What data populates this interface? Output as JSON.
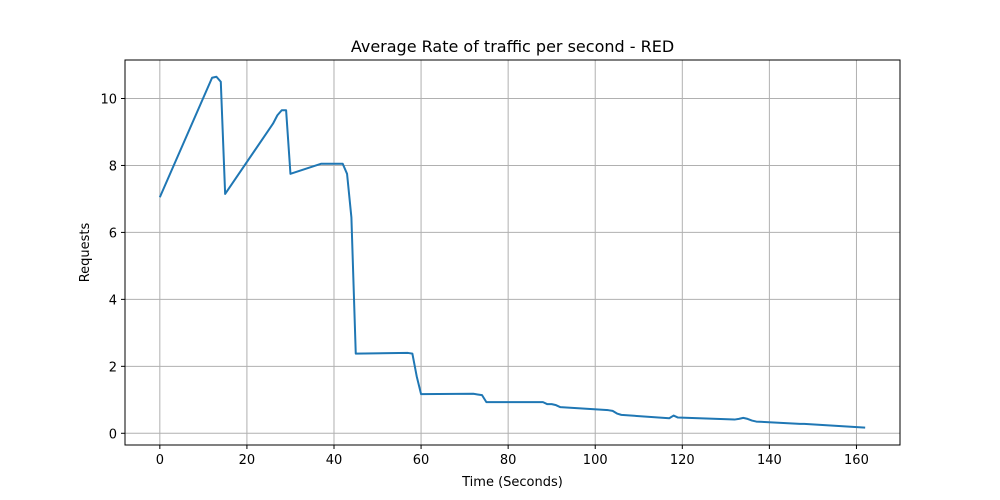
{
  "chart_data": {
    "type": "line",
    "title": "Average Rate of traffic per second - RED",
    "xlabel": "Time (Seconds)",
    "ylabel": "Requests",
    "xlim": [
      -8,
      170
    ],
    "ylim": [
      -0.35,
      11.15
    ],
    "xticks": [
      0,
      20,
      40,
      60,
      80,
      100,
      120,
      140,
      160
    ],
    "yticks": [
      0,
      2,
      4,
      6,
      8,
      10
    ],
    "grid": true,
    "legend": "none",
    "colors": {
      "line": "#1f77b4",
      "grid": "#b0b0b0"
    },
    "series": [
      {
        "x": [
          0,
          12,
          13,
          14,
          15,
          26,
          27,
          28,
          29,
          30,
          37,
          42,
          43,
          44,
          45,
          57,
          58,
          59,
          60,
          72,
          73,
          74,
          75,
          88,
          89,
          90,
          91,
          92,
          103,
          104,
          105,
          106,
          117,
          118,
          119,
          132,
          133,
          134,
          135,
          136,
          137,
          147,
          148,
          162
        ],
        "y": [
          7.05,
          10.62,
          10.65,
          10.5,
          7.15,
          9.25,
          9.5,
          9.65,
          9.65,
          7.75,
          8.05,
          8.05,
          7.75,
          6.45,
          2.38,
          2.4,
          2.38,
          1.7,
          1.17,
          1.18,
          1.16,
          1.14,
          0.93,
          0.93,
          0.87,
          0.87,
          0.84,
          0.78,
          0.69,
          0.67,
          0.59,
          0.55,
          0.45,
          0.53,
          0.47,
          0.41,
          0.43,
          0.46,
          0.43,
          0.38,
          0.35,
          0.28,
          0.28,
          0.17
        ]
      }
    ]
  }
}
